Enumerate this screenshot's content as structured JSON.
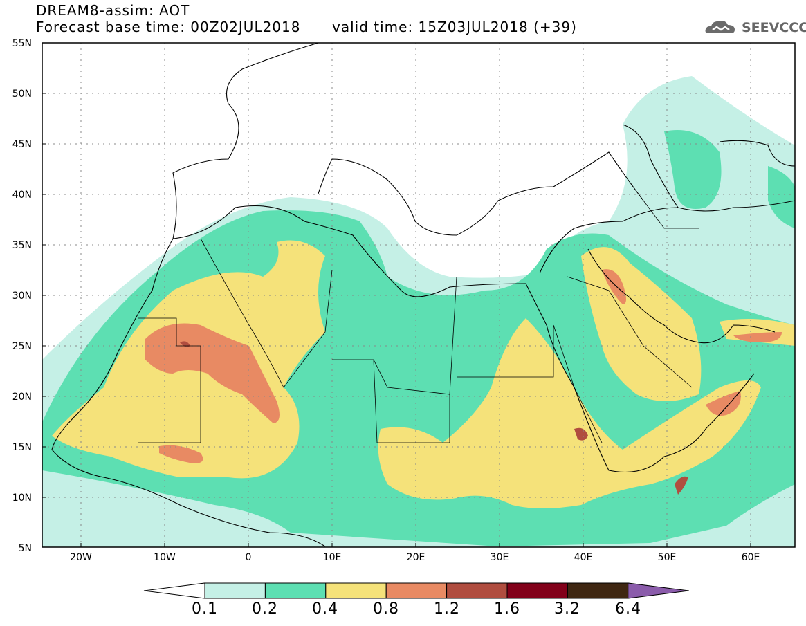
{
  "header": {
    "title": "DREAM8-assim: AOT",
    "base_time": "Forecast base time: 00Z02JUL2018",
    "valid_time": "valid time: 15Z03JUL2018 (+39)",
    "logo_text": "SEEVCCC",
    "logo_icon": "cloud-logo-icon"
  },
  "axes": {
    "lon_labels": [
      "20W",
      "10W",
      "0",
      "10E",
      "20E",
      "30E",
      "40E",
      "50E",
      "60E"
    ],
    "lat_labels": [
      "55N",
      "50N",
      "45N",
      "40N",
      "35N",
      "30N",
      "25N",
      "20N",
      "15N",
      "10N",
      "5N"
    ],
    "lon_range": [
      -25,
      65
    ],
    "lat_range": [
      5,
      55
    ]
  },
  "colorbar": {
    "labels": [
      "0.1",
      "0.2",
      "0.4",
      "0.8",
      "1.2",
      "1.6",
      "3.2",
      "6.4"
    ],
    "colors": [
      "#ffffff",
      "#c5f0e6",
      "#5ddfb2",
      "#f5e27a",
      "#e88a63",
      "#b04d3f",
      "#82001a",
      "#3f2712",
      "#8b5cab"
    ]
  },
  "colors": {
    "land": "#ffffff",
    "border": "#000000",
    "grid": "#888888"
  }
}
